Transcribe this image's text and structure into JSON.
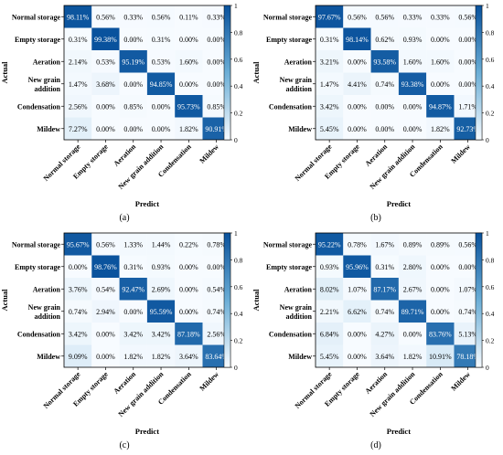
{
  "colormap": {
    "low": "#f7fbff",
    "mid": "#6baed6",
    "high": "#08519c",
    "text_dark": "#000000",
    "text_light": "#ffffff"
  },
  "chart_data": [
    {
      "type": "heatmap",
      "caption": "(a)",
      "xlabel": "Predict",
      "ylabel": "Actual",
      "row_labels": [
        [
          "Normal storage"
        ],
        [
          "Empty storage"
        ],
        [
          "Aeration"
        ],
        [
          "New grain",
          "addition"
        ],
        [
          "Condensation"
        ],
        [
          "Mildew"
        ]
      ],
      "col_labels": [
        "Normal storage",
        "Empty storage",
        "Aeration",
        "New grain addition",
        "Condensation",
        "Mildew"
      ],
      "values": [
        [
          98.11,
          0.56,
          0.33,
          0.56,
          0.11,
          0.33
        ],
        [
          0.31,
          99.38,
          0.0,
          0.31,
          0.0,
          0.0
        ],
        [
          2.14,
          0.53,
          95.19,
          0.53,
          1.6,
          0.0
        ],
        [
          1.47,
          3.68,
          0.0,
          94.85,
          0.0,
          0.0
        ],
        [
          2.56,
          0.0,
          0.85,
          0.0,
          95.73,
          0.85
        ],
        [
          7.27,
          0.0,
          0.0,
          0.0,
          1.82,
          90.91
        ]
      ],
      "colorbar": {
        "ticks": [
          "0",
          "0.2",
          "0.4",
          "0.6",
          "0.8",
          "1"
        ],
        "range": [
          0,
          1
        ]
      }
    },
    {
      "type": "heatmap",
      "caption": "(b)",
      "xlabel": "Predict",
      "ylabel": "Actual",
      "row_labels": [
        [
          "Normal storage"
        ],
        [
          "Empty storage"
        ],
        [
          "Aeration"
        ],
        [
          "New grain",
          "addition"
        ],
        [
          "Condensation"
        ],
        [
          "Mildew"
        ]
      ],
      "col_labels": [
        "Normal storage",
        "Empty storage",
        "Aeration",
        "New grain addition",
        "Condensation",
        "Mildew"
      ],
      "values": [
        [
          97.67,
          0.56,
          0.56,
          0.33,
          0.33,
          0.56
        ],
        [
          0.31,
          98.14,
          0.62,
          0.93,
          0.0,
          0.0
        ],
        [
          3.21,
          0.0,
          93.58,
          1.6,
          1.6,
          0.0
        ],
        [
          1.47,
          4.41,
          0.74,
          93.38,
          0.0,
          0.0
        ],
        [
          3.42,
          0.0,
          0.0,
          0.0,
          94.87,
          1.71
        ],
        [
          5.45,
          0.0,
          0.0,
          0.0,
          1.82,
          92.73
        ]
      ],
      "colorbar": {
        "ticks": [
          "0",
          "0.2",
          "0.4",
          "0.6",
          "0.8",
          "1"
        ],
        "range": [
          0,
          1
        ]
      }
    },
    {
      "type": "heatmap",
      "caption": "(c)",
      "xlabel": "Predict",
      "ylabel": "Actual",
      "row_labels": [
        [
          "Normal storage"
        ],
        [
          "Empty storage"
        ],
        [
          "Aeration"
        ],
        [
          "New grain",
          "addition"
        ],
        [
          "Condensation"
        ],
        [
          "Mildew"
        ]
      ],
      "col_labels": [
        "Normal storage",
        "Empty storage",
        "Aeration",
        "New grain addition",
        "Condensation",
        "Mildew"
      ],
      "values": [
        [
          95.67,
          0.56,
          1.33,
          1.44,
          0.22,
          0.78
        ],
        [
          0.0,
          98.76,
          0.31,
          0.93,
          0.0,
          0.0
        ],
        [
          3.76,
          0.54,
          92.47,
          2.69,
          0.0,
          0.54
        ],
        [
          0.74,
          2.94,
          0.0,
          95.59,
          0.0,
          0.74
        ],
        [
          3.42,
          0.0,
          3.42,
          3.42,
          87.18,
          2.56
        ],
        [
          9.09,
          0.0,
          1.82,
          1.82,
          3.64,
          83.64
        ]
      ],
      "colorbar": {
        "ticks": [
          "0",
          "0.2",
          "0.4",
          "0.6",
          "0.8",
          "1"
        ],
        "range": [
          0,
          1
        ]
      }
    },
    {
      "type": "heatmap",
      "caption": "(d)",
      "xlabel": "Predict",
      "ylabel": "Actual",
      "row_labels": [
        [
          "Normal storage"
        ],
        [
          "Empty storage"
        ],
        [
          "Aeration"
        ],
        [
          "New grain",
          "addition"
        ],
        [
          "Condensation"
        ],
        [
          "Mildew"
        ]
      ],
      "col_labels": [
        "Normal storage",
        "Empty storage",
        "Aeration",
        "New grain addition",
        "Condensation",
        "Mildew"
      ],
      "values": [
        [
          95.22,
          0.78,
          1.67,
          0.89,
          0.89,
          0.56
        ],
        [
          0.93,
          95.96,
          0.31,
          2.8,
          0.0,
          0.0
        ],
        [
          8.02,
          1.07,
          87.17,
          2.67,
          0.0,
          1.07
        ],
        [
          2.21,
          6.62,
          0.74,
          89.71,
          0.0,
          0.74
        ],
        [
          6.84,
          0.0,
          4.27,
          0.0,
          83.76,
          5.13
        ],
        [
          5.45,
          0.0,
          3.64,
          1.82,
          10.91,
          78.18
        ]
      ],
      "colorbar": {
        "ticks": [
          "0",
          "0.2",
          "0.4",
          "0.6",
          "0.8",
          "1"
        ],
        "range": [
          0,
          1
        ]
      }
    }
  ]
}
